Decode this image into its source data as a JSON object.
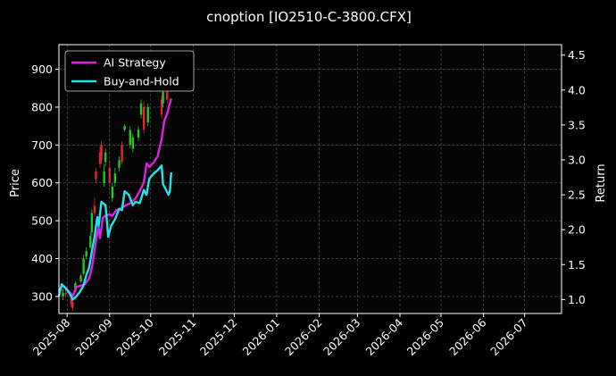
{
  "chart_data": {
    "type": "line",
    "title": "cnoption [IO2510-C-3800.CFX]",
    "ylabel_left": "Price",
    "ylabel_right": "Return",
    "grid": true,
    "legend_position": "top-left",
    "background": "#000000",
    "x_ticks": [
      "2025-08",
      "2025-09",
      "2025-10",
      "2025-11",
      "2025-12",
      "2026-01",
      "2026-02",
      "2026-03",
      "2026-04",
      "2026-05",
      "2026-06",
      "2026-07"
    ],
    "x_range": [
      "2025-07-26",
      "2026-07-28"
    ],
    "y_left": {
      "range": [
        255,
        965
      ],
      "ticks": [
        300,
        400,
        500,
        600,
        700,
        800,
        900
      ]
    },
    "y_right": {
      "range": [
        0.8,
        4.65
      ],
      "ticks": [
        1.0,
        1.5,
        2.0,
        2.5,
        3.0,
        3.5,
        4.0,
        4.5
      ]
    },
    "candle_colors": {
      "up": "#26c626",
      "down": "#e0262e"
    },
    "candles": [
      {
        "date": "2025-07-29",
        "open": 300,
        "close": 310,
        "high": 320,
        "low": 290
      },
      {
        "date": "2025-07-31",
        "open": 310,
        "close": 305,
        "high": 318,
        "low": 300
      },
      {
        "date": "2025-08-04",
        "open": 295,
        "close": 280,
        "high": 300,
        "low": 270
      },
      {
        "date": "2025-08-05",
        "open": 285,
        "close": 270,
        "high": 290,
        "low": 262
      },
      {
        "date": "2025-08-07",
        "open": 320,
        "close": 335,
        "high": 340,
        "low": 315
      },
      {
        "date": "2025-08-11",
        "open": 340,
        "close": 355,
        "high": 360,
        "low": 335
      },
      {
        "date": "2025-08-13",
        "open": 360,
        "close": 400,
        "high": 410,
        "low": 355
      },
      {
        "date": "2025-08-15",
        "open": 405,
        "close": 420,
        "high": 430,
        "low": 398
      },
      {
        "date": "2025-08-18",
        "open": 430,
        "close": 460,
        "high": 470,
        "low": 425
      },
      {
        "date": "2025-08-19",
        "open": 470,
        "close": 520,
        "high": 530,
        "low": 460
      },
      {
        "date": "2025-08-21",
        "open": 540,
        "close": 520,
        "high": 560,
        "low": 510
      },
      {
        "date": "2025-08-22",
        "open": 630,
        "close": 610,
        "high": 640,
        "low": 600
      },
      {
        "date": "2025-08-25",
        "open": 680,
        "close": 650,
        "high": 695,
        "low": 640
      },
      {
        "date": "2025-08-26",
        "open": 700,
        "close": 660,
        "high": 710,
        "low": 650
      },
      {
        "date": "2025-08-28",
        "open": 600,
        "close": 630,
        "high": 650,
        "low": 590
      },
      {
        "date": "2025-08-29",
        "open": 655,
        "close": 680,
        "high": 690,
        "low": 645
      },
      {
        "date": "2025-09-01",
        "open": 640,
        "close": 600,
        "high": 660,
        "low": 590
      },
      {
        "date": "2025-09-03",
        "open": 560,
        "close": 590,
        "high": 600,
        "low": 550
      },
      {
        "date": "2025-09-05",
        "open": 600,
        "close": 625,
        "high": 640,
        "low": 590
      },
      {
        "date": "2025-09-08",
        "open": 640,
        "close": 660,
        "high": 670,
        "low": 630
      },
      {
        "date": "2025-09-10",
        "open": 700,
        "close": 655,
        "high": 710,
        "low": 650
      },
      {
        "date": "2025-09-12",
        "open": 740,
        "close": 750,
        "high": 755,
        "low": 735
      },
      {
        "date": "2025-09-16",
        "open": 700,
        "close": 740,
        "high": 750,
        "low": 690
      },
      {
        "date": "2025-09-18",
        "open": 690,
        "close": 720,
        "high": 730,
        "low": 680
      },
      {
        "date": "2025-09-22",
        "open": 720,
        "close": 740,
        "high": 750,
        "low": 710
      },
      {
        "date": "2025-09-24",
        "open": 780,
        "close": 810,
        "high": 820,
        "low": 770
      },
      {
        "date": "2025-09-26",
        "open": 800,
        "close": 740,
        "high": 815,
        "low": 730
      },
      {
        "date": "2025-09-29",
        "open": 760,
        "close": 800,
        "high": 810,
        "low": 750
      },
      {
        "date": "2025-10-09",
        "open": 820,
        "close": 780,
        "high": 830,
        "low": 770
      },
      {
        "date": "2025-10-10",
        "open": 810,
        "close": 840,
        "high": 850,
        "low": 800
      },
      {
        "date": "2025-10-13",
        "open": 860,
        "close": 820,
        "high": 870,
        "low": 810
      },
      {
        "date": "2025-10-15",
        "open": 870,
        "close": 930,
        "high": 935,
        "low": 860
      },
      {
        "date": "2025-10-16",
        "open": 900,
        "close": 850,
        "high": 910,
        "low": 840
      }
    ],
    "series": [
      {
        "name": "AI Strategy",
        "axis": "right",
        "color": "#e11ee6",
        "points": [
          [
            "2025-07-26",
            1.12
          ],
          [
            "2025-07-28",
            1.2
          ],
          [
            "2025-07-31",
            1.17
          ],
          [
            "2025-08-03",
            1.1
          ],
          [
            "2025-08-05",
            1.05
          ],
          [
            "2025-08-08",
            1.18
          ],
          [
            "2025-08-11",
            1.2
          ],
          [
            "2025-08-14",
            1.22
          ],
          [
            "2025-08-17",
            1.3
          ],
          [
            "2025-08-19",
            1.45
          ],
          [
            "2025-08-21",
            1.7
          ],
          [
            "2025-08-23",
            1.95
          ],
          [
            "2025-08-24",
            2.03
          ],
          [
            "2025-08-25",
            1.88
          ],
          [
            "2025-08-26",
            2.02
          ],
          [
            "2025-08-27",
            2.17
          ],
          [
            "2025-08-29",
            2.2
          ],
          [
            "2025-09-01",
            2.22
          ],
          [
            "2025-09-03",
            2.2
          ],
          [
            "2025-09-06",
            2.28
          ],
          [
            "2025-09-09",
            2.3
          ],
          [
            "2025-09-13",
            2.35
          ],
          [
            "2025-09-16",
            2.38
          ],
          [
            "2025-09-20",
            2.45
          ],
          [
            "2025-09-23",
            2.55
          ],
          [
            "2025-09-26",
            2.68
          ],
          [
            "2025-09-28",
            2.95
          ],
          [
            "2025-09-30",
            2.9
          ],
          [
            "2025-10-03",
            2.96
          ],
          [
            "2025-10-06",
            3.05
          ],
          [
            "2025-10-09",
            3.3
          ],
          [
            "2025-10-11",
            3.56
          ],
          [
            "2025-10-13",
            3.66
          ],
          [
            "2025-10-16",
            3.88
          ]
        ]
      },
      {
        "name": "Buy-and-Hold",
        "axis": "right",
        "color": "#22e3e8",
        "points": [
          [
            "2025-07-26",
            1.05
          ],
          [
            "2025-07-28",
            1.22
          ],
          [
            "2025-07-31",
            1.16
          ],
          [
            "2025-08-03",
            1.08
          ],
          [
            "2025-08-05",
            1.0
          ],
          [
            "2025-08-07",
            1.03
          ],
          [
            "2025-08-10",
            1.1
          ],
          [
            "2025-08-13",
            1.2
          ],
          [
            "2025-08-15",
            1.35
          ],
          [
            "2025-08-17",
            1.45
          ],
          [
            "2025-08-19",
            1.68
          ],
          [
            "2025-08-21",
            1.9
          ],
          [
            "2025-08-23",
            2.18
          ],
          [
            "2025-08-24",
            2.05
          ],
          [
            "2025-08-26",
            2.4
          ],
          [
            "2025-08-29",
            2.35
          ],
          [
            "2025-08-31",
            1.9
          ],
          [
            "2025-09-02",
            2.05
          ],
          [
            "2025-09-05",
            2.15
          ],
          [
            "2025-09-08",
            2.3
          ],
          [
            "2025-09-10",
            2.28
          ],
          [
            "2025-09-12",
            2.55
          ],
          [
            "2025-09-15",
            2.5
          ],
          [
            "2025-09-18",
            2.35
          ],
          [
            "2025-09-20",
            2.4
          ],
          [
            "2025-09-23",
            2.38
          ],
          [
            "2025-09-26",
            2.57
          ],
          [
            "2025-09-28",
            2.5
          ],
          [
            "2025-09-30",
            2.73
          ],
          [
            "2025-10-03",
            2.8
          ],
          [
            "2025-10-06",
            2.85
          ],
          [
            "2025-10-09",
            2.92
          ],
          [
            "2025-10-10",
            2.65
          ],
          [
            "2025-10-12",
            2.58
          ],
          [
            "2025-10-14",
            2.5
          ],
          [
            "2025-10-15",
            2.55
          ],
          [
            "2025-10-16",
            2.82
          ]
        ]
      }
    ]
  }
}
